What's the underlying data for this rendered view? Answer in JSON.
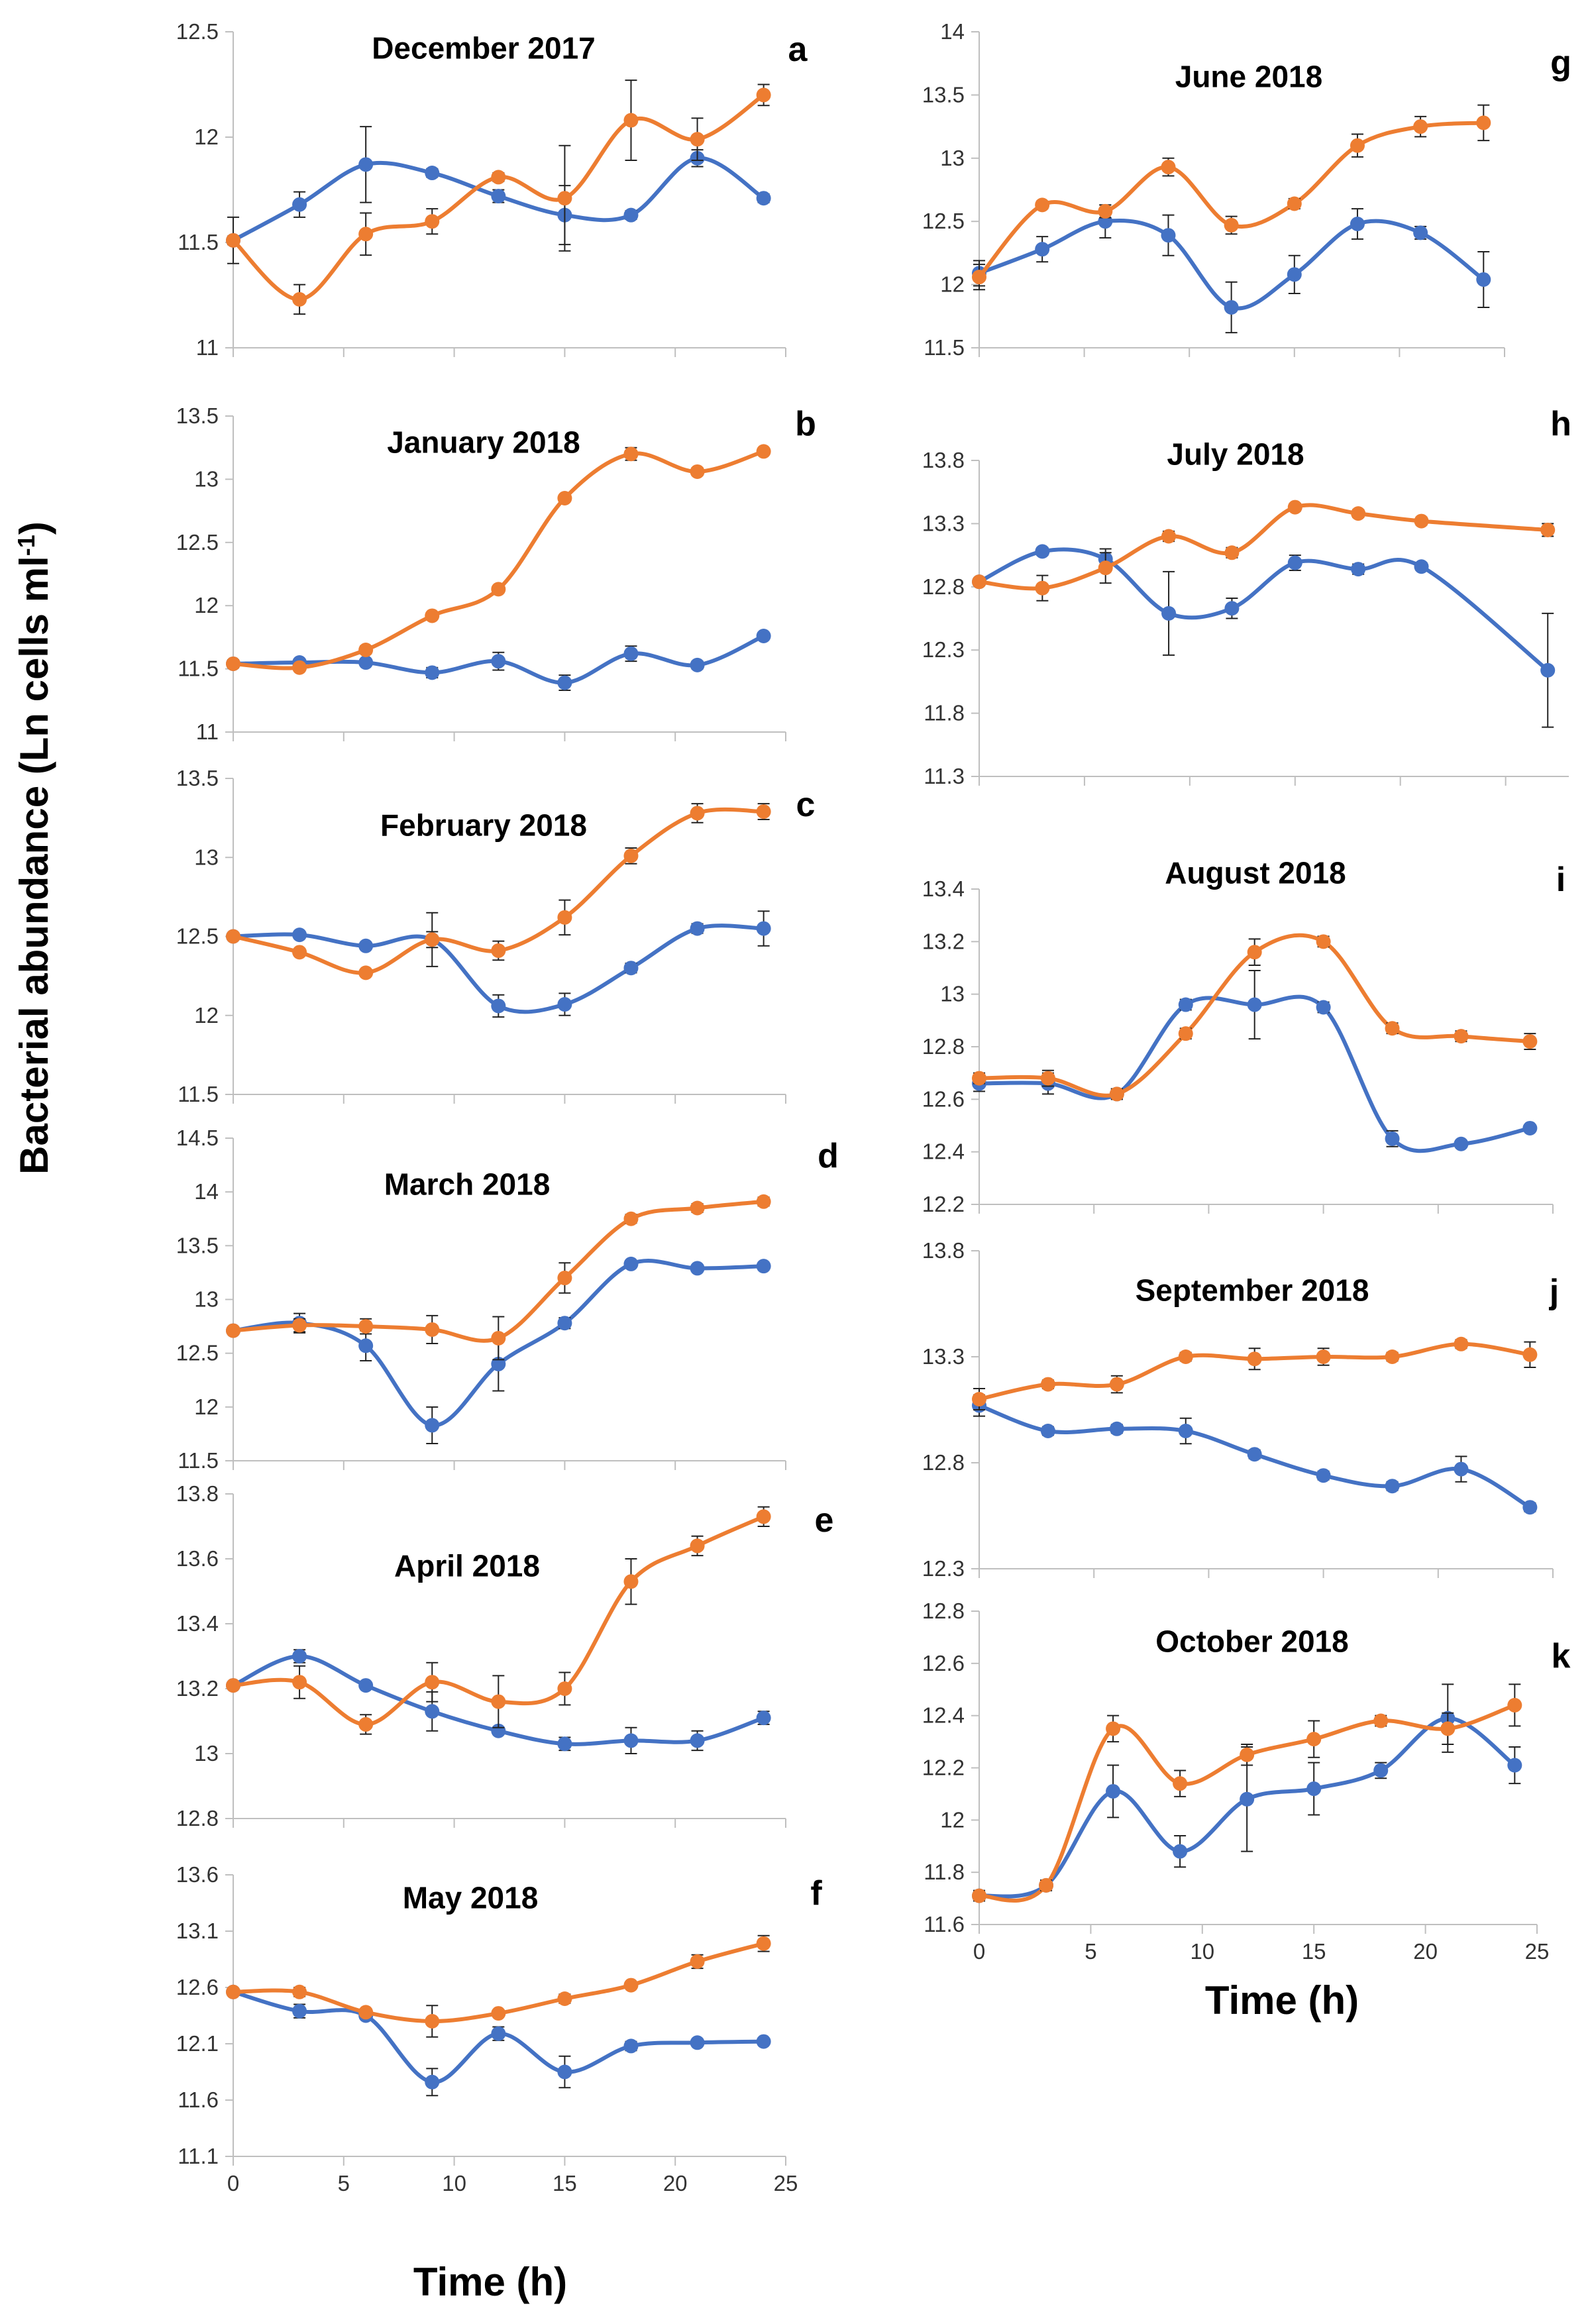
{
  "figure": {
    "ylabel": "Bacterial abundance (Ln cells ml",
    "ylabel_sup": "-1",
    "ylabel_end": ")",
    "xlabel_left": "Time (h)",
    "xlabel_right": "Time (h)",
    "series_colors": [
      "#4472C4",
      "#ED7D31"
    ]
  },
  "chart_data": [
    {
      "id": "a",
      "type": "line",
      "title": "December 2017",
      "xlim": [
        0,
        25
      ],
      "show_x_ticks": false,
      "yticks": [
        11,
        11.5,
        12,
        12.5
      ],
      "ytick_labels": [
        "11",
        "11.5",
        "12",
        "12.5"
      ],
      "x": [
        0,
        3,
        6,
        9,
        12,
        15,
        18,
        21,
        24
      ],
      "series": [
        {
          "name": "blue",
          "values": [
            11.51,
            11.68,
            11.87,
            11.83,
            11.72,
            11.63,
            11.63,
            11.9,
            11.71
          ],
          "err": [
            0.02,
            0.06,
            0.18,
            0.02,
            0.03,
            0.14,
            0.02,
            0.04,
            0.02
          ]
        },
        {
          "name": "orange",
          "values": [
            11.51,
            11.23,
            11.54,
            11.6,
            11.81,
            11.71,
            12.08,
            11.99,
            12.2
          ],
          "err": [
            0.11,
            0.07,
            0.1,
            0.06,
            0.02,
            0.25,
            0.19,
            0.1,
            0.05
          ]
        }
      ]
    },
    {
      "id": "b",
      "type": "line",
      "title": "January 2018",
      "xlim": [
        0,
        25
      ],
      "show_x_ticks": false,
      "yticks": [
        11,
        11.5,
        12,
        12.5,
        13,
        13.5
      ],
      "ytick_labels": [
        "11",
        "11.5",
        "12",
        "12.5",
        "13",
        "13.5"
      ],
      "x": [
        0,
        3,
        6,
        9,
        12,
        15,
        18,
        21,
        24
      ],
      "series": [
        {
          "name": "blue",
          "values": [
            11.54,
            11.55,
            11.55,
            11.47,
            11.56,
            11.39,
            11.62,
            11.53,
            11.76
          ],
          "err": [
            0.03,
            0.02,
            0.02,
            0.04,
            0.07,
            0.06,
            0.06,
            0.03,
            0.02
          ]
        },
        {
          "name": "orange",
          "values": [
            11.54,
            11.51,
            11.65,
            11.92,
            12.13,
            12.85,
            13.2,
            13.06,
            13.22
          ],
          "err": [
            0.03,
            0.02,
            0.03,
            0.02,
            0.02,
            0.02,
            0.05,
            0.03,
            0.02
          ]
        }
      ]
    },
    {
      "id": "c",
      "type": "line",
      "title": "February 2018",
      "xlim": [
        0,
        25
      ],
      "show_x_ticks": false,
      "yticks": [
        11.5,
        12,
        12.5,
        13,
        13.5
      ],
      "ytick_labels": [
        "11.5",
        "12",
        "12.5",
        "13",
        "13.5"
      ],
      "x": [
        0,
        3,
        6,
        9,
        12,
        15,
        18,
        21,
        24
      ],
      "series": [
        {
          "name": "blue",
          "values": [
            12.5,
            12.51,
            12.44,
            12.48,
            12.06,
            12.07,
            12.3,
            12.55,
            12.55
          ],
          "err": [
            0.02,
            0.02,
            0.02,
            0.17,
            0.07,
            0.07,
            0.03,
            0.03,
            0.11
          ]
        },
        {
          "name": "orange",
          "values": [
            12.5,
            12.4,
            12.27,
            12.48,
            12.41,
            12.62,
            13.01,
            13.28,
            13.29
          ],
          "err": [
            0.02,
            0.02,
            0.02,
            0.05,
            0.06,
            0.11,
            0.05,
            0.06,
            0.05
          ]
        }
      ]
    },
    {
      "id": "d",
      "type": "line",
      "title": "March 2018",
      "xlim": [
        0,
        25
      ],
      "show_x_ticks": false,
      "yticks": [
        11.5,
        12,
        12.5,
        13,
        13.5,
        14,
        14.5
      ],
      "ytick_labels": [
        "11.5",
        "12",
        "12.5",
        "13",
        "13.5",
        "14",
        "14.5"
      ],
      "x": [
        0,
        3,
        6,
        9,
        12,
        15,
        18,
        21,
        24
      ],
      "series": [
        {
          "name": "blue",
          "values": [
            12.71,
            12.78,
            12.57,
            11.83,
            12.4,
            12.78,
            13.33,
            13.29,
            13.31
          ],
          "err": [
            0.02,
            0.09,
            0.14,
            0.17,
            0.25,
            0.05,
            0.03,
            0.03,
            0.03
          ]
        },
        {
          "name": "orange",
          "values": [
            12.71,
            12.76,
            12.75,
            12.72,
            12.64,
            13.2,
            13.75,
            13.85,
            13.91
          ],
          "err": [
            0.02,
            0.06,
            0.07,
            0.13,
            0.2,
            0.14,
            0.04,
            0.04,
            0.04
          ]
        }
      ]
    },
    {
      "id": "e",
      "type": "line",
      "title": "April 2018",
      "xlim": [
        0,
        25
      ],
      "show_x_ticks": false,
      "yticks": [
        12.8,
        13,
        13.2,
        13.4,
        13.6,
        13.8
      ],
      "ytick_labels": [
        "12.8",
        "13",
        "13.2",
        "13.4",
        "13.6",
        "13.8"
      ],
      "x": [
        0,
        3,
        6,
        9,
        12,
        15,
        18,
        21,
        24
      ],
      "series": [
        {
          "name": "blue",
          "values": [
            13.21,
            13.3,
            13.21,
            13.13,
            13.07,
            13.03,
            13.04,
            13.04,
            13.11
          ],
          "err": [
            0.01,
            0.02,
            0.01,
            0.06,
            0.01,
            0.02,
            0.04,
            0.03,
            0.02
          ]
        },
        {
          "name": "orange",
          "values": [
            13.21,
            13.22,
            13.09,
            13.22,
            13.16,
            13.2,
            13.53,
            13.64,
            13.73
          ],
          "err": [
            0.01,
            0.05,
            0.03,
            0.06,
            0.08,
            0.05,
            0.07,
            0.03,
            0.03
          ]
        }
      ]
    },
    {
      "id": "f",
      "type": "line",
      "title": "May 2018",
      "xlim": [
        0,
        25
      ],
      "show_x_ticks": true,
      "xticks": [
        0,
        5,
        10,
        15,
        20,
        25
      ],
      "xtick_labels": [
        "0",
        "5",
        "10",
        "15",
        "20",
        "25"
      ],
      "yticks": [
        11.1,
        11.6,
        12.1,
        12.6,
        13.1,
        13.6
      ],
      "ytick_labels": [
        "11.1",
        "11.6",
        "12.1",
        "12.6",
        "13.1",
        "13.6"
      ],
      "x": [
        0,
        3,
        6,
        9,
        12,
        15,
        18,
        21,
        24
      ],
      "series": [
        {
          "name": "blue",
          "values": [
            12.56,
            12.39,
            12.35,
            11.76,
            12.19,
            11.85,
            12.08,
            12.11,
            12.12
          ],
          "err": [
            0.02,
            0.06,
            0.03,
            0.12,
            0.06,
            0.14,
            0.04,
            0.03,
            0.02
          ]
        },
        {
          "name": "orange",
          "values": [
            12.56,
            12.56,
            12.38,
            12.3,
            12.37,
            12.5,
            12.62,
            12.83,
            12.99
          ],
          "err": [
            0.02,
            0.04,
            0.03,
            0.14,
            0.02,
            0.04,
            0.03,
            0.06,
            0.07
          ]
        }
      ]
    },
    {
      "id": "g",
      "type": "line",
      "title": "June 2018",
      "xlim": [
        0,
        25
      ],
      "show_x_ticks": false,
      "yticks": [
        11.5,
        12,
        12.5,
        13,
        13.5,
        14
      ],
      "ytick_labels": [
        "11.5",
        "12",
        "12.5",
        "13",
        "13.5",
        "14"
      ],
      "x": [
        0,
        3,
        6,
        9,
        12,
        15,
        18,
        21,
        24
      ],
      "series": [
        {
          "name": "blue",
          "values": [
            12.09,
            12.28,
            12.5,
            12.39,
            11.82,
            12.08,
            12.48,
            12.41,
            12.04
          ],
          "err": [
            0.1,
            0.1,
            0.13,
            0.16,
            0.2,
            0.15,
            0.12,
            0.05,
            0.22
          ]
        },
        {
          "name": "orange",
          "values": [
            12.06,
            12.63,
            12.58,
            12.93,
            12.47,
            12.64,
            13.1,
            13.25,
            13.28
          ],
          "err": [
            0.1,
            0.03,
            0.05,
            0.07,
            0.07,
            0.04,
            0.09,
            0.08,
            0.14
          ]
        }
      ]
    },
    {
      "id": "h",
      "type": "line",
      "title": "July 2018",
      "xlim": [
        0,
        28
      ],
      "show_x_ticks": false,
      "yticks": [
        11.3,
        11.8,
        12.3,
        12.8,
        13.3,
        13.8
      ],
      "ytick_labels": [
        "11.3",
        "11.8",
        "12.3",
        "12.8",
        "13.3",
        "13.8"
      ],
      "x": [
        0,
        3,
        6,
        9,
        12,
        15,
        18,
        21,
        24,
        27
      ],
      "series": [
        {
          "name": "blue",
          "values": [
            12.84,
            13.08,
            13.02,
            12.59,
            12.63,
            12.99,
            12.94,
            12.96,
            null,
            12.14
          ],
          "err": [
            0.03,
            0.03,
            0.08,
            0.33,
            0.08,
            0.06,
            0.04,
            0.03,
            null,
            0.45
          ]
        },
        {
          "name": "orange",
          "values": [
            12.84,
            12.79,
            12.95,
            13.2,
            13.07,
            13.43,
            13.38,
            13.32,
            null,
            13.25
          ],
          "err": [
            0.03,
            0.1,
            0.12,
            0.04,
            0.04,
            0.03,
            0.03,
            0.03,
            null,
            0.05
          ]
        }
      ]
    },
    {
      "id": "i",
      "type": "line",
      "title": "August 2018",
      "xlim": [
        0,
        25
      ],
      "show_x_ticks": false,
      "yticks": [
        12.2,
        12.4,
        12.6,
        12.8,
        13,
        13.2,
        13.4
      ],
      "ytick_labels": [
        "12.2",
        "12.4",
        "12.6",
        "12.8",
        "13",
        "13.2",
        "13.4"
      ],
      "x": [
        0,
        3,
        6,
        9,
        12,
        15,
        18,
        21,
        24
      ],
      "series": [
        {
          "name": "blue",
          "values": [
            12.66,
            12.66,
            12.62,
            12.96,
            12.96,
            12.95,
            12.45,
            12.43,
            12.49
          ],
          "err": [
            0.03,
            0.04,
            0.02,
            0.02,
            0.13,
            0.02,
            0.03,
            0.01,
            0.01
          ]
        },
        {
          "name": "orange",
          "values": [
            12.68,
            12.68,
            12.62,
            12.85,
            13.16,
            13.2,
            12.87,
            12.84,
            12.82
          ],
          "err": [
            0.02,
            0.03,
            0.02,
            0.02,
            0.05,
            0.02,
            0.02,
            0.02,
            0.03
          ]
        }
      ]
    },
    {
      "id": "j",
      "type": "line",
      "title": "September 2018",
      "xlim": [
        0,
        25
      ],
      "show_x_ticks": false,
      "yticks": [
        12.3,
        12.8,
        13.3,
        13.8
      ],
      "ytick_labels": [
        "12.3",
        "12.8",
        "13.3",
        "13.8"
      ],
      "x": [
        0,
        3,
        6,
        9,
        12,
        15,
        18,
        21,
        24
      ],
      "series": [
        {
          "name": "blue",
          "values": [
            13.07,
            12.95,
            12.96,
            12.95,
            12.84,
            12.74,
            12.69,
            12.77,
            12.59
          ],
          "err": [
            0.05,
            0.02,
            0.02,
            0.06,
            0.02,
            0.02,
            0.02,
            0.06,
            0.02
          ]
        },
        {
          "name": "orange",
          "values": [
            13.1,
            13.17,
            13.17,
            13.3,
            13.29,
            13.3,
            13.3,
            13.36,
            13.31
          ],
          "err": [
            0.05,
            0.02,
            0.04,
            0.02,
            0.05,
            0.04,
            0.02,
            0.02,
            0.06
          ]
        }
      ]
    },
    {
      "id": "k",
      "type": "line",
      "title": "October 2018",
      "xlim": [
        0,
        25
      ],
      "show_x_ticks": true,
      "xticks": [
        0,
        5,
        10,
        15,
        20,
        25
      ],
      "xtick_labels": [
        "0",
        "5",
        "10",
        "15",
        "20",
        "25"
      ],
      "yticks": [
        11.6,
        11.8,
        12,
        12.2,
        12.4,
        12.6,
        12.8
      ],
      "ytick_labels": [
        "11.6",
        "11.8",
        "12",
        "12.2",
        "12.4",
        "12.6",
        "12.8"
      ],
      "x": [
        0,
        3,
        6,
        9,
        12,
        15,
        18,
        21,
        24
      ],
      "series": [
        {
          "name": "blue",
          "values": [
            11.71,
            11.75,
            12.11,
            11.88,
            12.08,
            12.12,
            12.19,
            12.39,
            12.21
          ],
          "err": [
            0.02,
            0.02,
            0.1,
            0.06,
            0.2,
            0.1,
            0.03,
            0.13,
            0.07
          ]
        },
        {
          "name": "orange",
          "values": [
            11.71,
            11.75,
            12.35,
            12.14,
            12.25,
            12.31,
            12.38,
            12.35,
            12.44
          ],
          "err": [
            0.02,
            0.02,
            0.05,
            0.05,
            0.04,
            0.07,
            0.02,
            0.06,
            0.08
          ]
        }
      ]
    }
  ]
}
